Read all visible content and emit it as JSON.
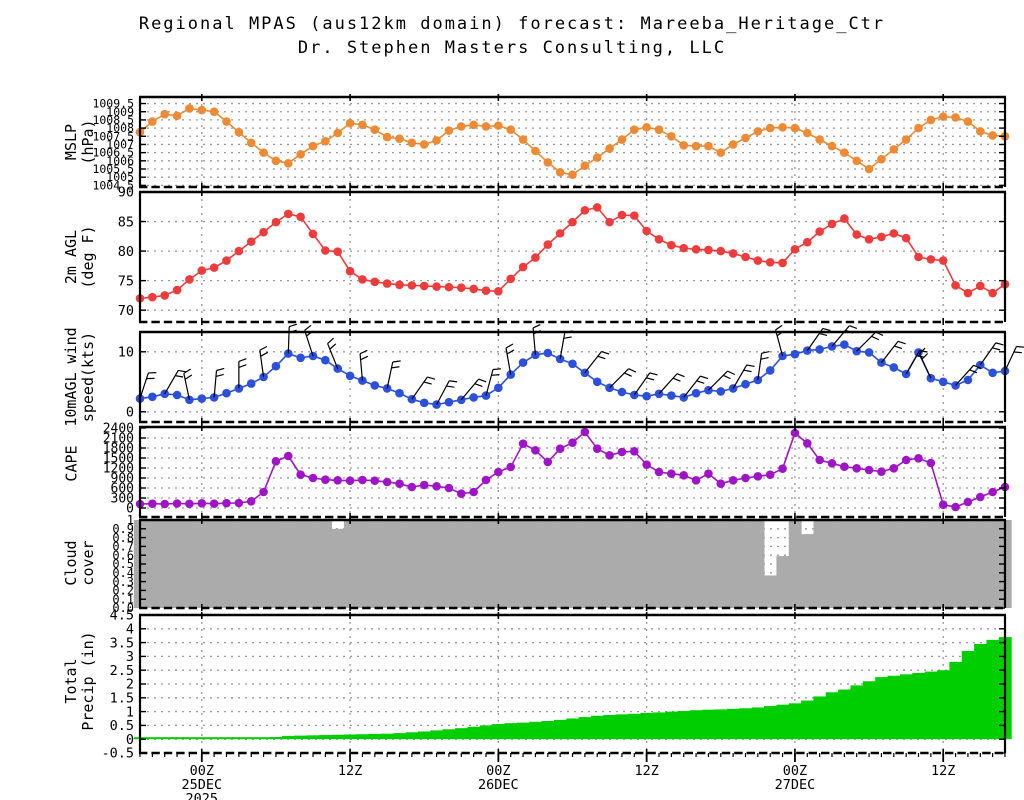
{
  "title": {
    "line1": "Regional MPAS (aus12km domain) forecast: Mareeba_Heritage_Ctr",
    "line2": "Dr. Stephen Masters Consulting, LLC"
  },
  "time_axis": {
    "major_hours": [
      5,
      17,
      29,
      41,
      53,
      65
    ],
    "labels": [
      {
        "h": 5,
        "lines": [
          "00Z",
          "25DEC",
          "2025"
        ]
      },
      {
        "h": 17,
        "lines": [
          "12Z"
        ]
      },
      {
        "h": 29,
        "lines": [
          "00Z",
          "26DEC"
        ]
      },
      {
        "h": 41,
        "lines": [
          "12Z"
        ]
      },
      {
        "h": 53,
        "lines": [
          "00Z",
          "27DEC"
        ]
      },
      {
        "h": 65,
        "lines": [
          "12Z"
        ]
      }
    ],
    "hours_total": 70
  },
  "colors": {
    "mslp": "#ED8A33",
    "temp": "#EE3B3B",
    "wind": "#2B50DC",
    "cape": "#A014C8",
    "cloud": "#ABABAB",
    "precip": "#00CE00",
    "grid": "#999999",
    "axis": "#000000"
  },
  "chart_data": [
    {
      "id": "mslp",
      "type": "line",
      "ylabel_line1": "MSLP",
      "ylabel_line2": "(hPa)",
      "ymin": 1004.4,
      "ymax": 1009.9,
      "tick_font": 11.5,
      "yticks": [
        {
          "v": 1009.5,
          "t": "1009.5"
        },
        {
          "v": 1009,
          "t": "1009"
        },
        {
          "v": 1008.5,
          "t": "1008.5"
        },
        {
          "v": 1008,
          "t": "1008"
        },
        {
          "v": 1007.5,
          "t": "1007.5"
        },
        {
          "v": 1007,
          "t": "1007"
        },
        {
          "v": 1006.5,
          "t": "1006.5"
        },
        {
          "v": 1006,
          "t": "1006"
        },
        {
          "v": 1005.5,
          "t": "1005.5"
        },
        {
          "v": 1005,
          "t": "1005"
        },
        {
          "v": 1004.5,
          "t": "1004.5"
        }
      ],
      "values": [
        1007.75,
        1008.4,
        1008.85,
        1008.75,
        1009.2,
        1009.1,
        1009.0,
        1008.4,
        1007.75,
        1007.1,
        1006.5,
        1006.0,
        1005.85,
        1006.4,
        1006.9,
        1007.2,
        1007.7,
        1008.3,
        1008.2,
        1007.9,
        1007.45,
        1007.35,
        1007.1,
        1007.0,
        1007.25,
        1007.85,
        1008.1,
        1008.2,
        1008.1,
        1008.15,
        1007.9,
        1007.3,
        1006.6,
        1005.9,
        1005.3,
        1005.15,
        1005.7,
        1006.2,
        1006.75,
        1007.3,
        1007.9,
        1008.05,
        1007.9,
        1007.5,
        1006.95,
        1006.9,
        1006.9,
        1006.5,
        1007.0,
        1007.4,
        1007.8,
        1008.0,
        1008.05,
        1008.0,
        1007.7,
        1007.3,
        1006.9,
        1006.5,
        1006.0,
        1005.5,
        1006.1,
        1006.7,
        1007.3,
        1008.0,
        1008.5,
        1008.7,
        1008.65,
        1008.4,
        1007.8,
        1007.55,
        1007.5
      ]
    },
    {
      "id": "temp",
      "type": "line",
      "ylabel_line1": "2m AGL",
      "ylabel_line2": "(deg F)",
      "ymin": 68,
      "ymax": 90,
      "tick_font": 13.5,
      "yticks": [
        {
          "v": 90,
          "t": "90"
        },
        {
          "v": 85,
          "t": "85"
        },
        {
          "v": 80,
          "t": "80"
        },
        {
          "v": 75,
          "t": "75"
        },
        {
          "v": 70,
          "t": "70"
        }
      ],
      "values": [
        72.0,
        72.2,
        72.5,
        73.4,
        75.2,
        76.7,
        77.2,
        78.4,
        80.0,
        81.6,
        83.2,
        84.9,
        86.3,
        85.8,
        82.9,
        80.1,
        79.9,
        76.6,
        75.2,
        74.8,
        74.5,
        74.3,
        74.2,
        74.1,
        74.0,
        73.9,
        73.8,
        73.6,
        73.3,
        73.2,
        75.3,
        77.3,
        78.9,
        81.1,
        83.0,
        84.9,
        86.9,
        87.4,
        84.9,
        86.1,
        86.0,
        83.4,
        82.0,
        81.0,
        80.5,
        80.3,
        80.2,
        80.0,
        79.6,
        79.0,
        78.4,
        78.1,
        78.0,
        80.3,
        81.5,
        83.3,
        84.6,
        85.5,
        82.8,
        82.0,
        82.4,
        83.0,
        82.2,
        79.0,
        78.6,
        78.4,
        74.2,
        72.9,
        74.1,
        72.9,
        74.4
      ]
    },
    {
      "id": "wind",
      "type": "line",
      "ylabel_line1": "10mAGL wind",
      "ylabel_line2": "speed(kts)",
      "ymin": -1.7,
      "ymax": 13.3,
      "tick_font": 13.5,
      "yticks": [
        {
          "v": 10,
          "t": "10"
        },
        {
          "v": 0,
          "t": "0"
        }
      ],
      "values": [
        2.2,
        2.5,
        3.0,
        2.8,
        2.0,
        2.2,
        2.4,
        3.1,
        3.9,
        4.7,
        5.8,
        7.6,
        9.7,
        9.0,
        9.3,
        8.6,
        7.2,
        6.0,
        5.2,
        4.4,
        3.9,
        3.1,
        2.1,
        1.5,
        1.2,
        1.6,
        2.0,
        2.4,
        2.7,
        4.0,
        6.2,
        8.2,
        9.5,
        9.8,
        8.8,
        8.0,
        6.5,
        5.0,
        4.0,
        3.3,
        2.8,
        2.6,
        3.0,
        2.7,
        2.4,
        3.1,
        3.6,
        3.4,
        3.9,
        4.6,
        5.3,
        6.9,
        9.3,
        9.6,
        10.2,
        10.4,
        10.9,
        11.2,
        10.1,
        9.9,
        8.2,
        7.4,
        6.3,
        9.9,
        5.6,
        5.0,
        4.4,
        5.3,
        7.8,
        6.5,
        6.8
      ],
      "barb_dirs_every_2h": [
        18,
        30,
        -12,
        5,
        0,
        -8,
        2,
        -18,
        -22,
        -5,
        12,
        35,
        28,
        40,
        15,
        -10,
        -5,
        10,
        38,
        45,
        35,
        42,
        38,
        45,
        30,
        8,
        -15,
        35,
        40,
        45,
        38,
        30,
        -25,
        42,
        35,
        25
      ]
    },
    {
      "id": "cape",
      "type": "line",
      "ylabel_line1": "CAPE",
      "ylabel_line2": "",
      "ymin": -270,
      "ymax": 2430,
      "tick_font": 13,
      "yticks": [
        {
          "v": 2400,
          "t": "2400"
        },
        {
          "v": 2100,
          "t": "2100"
        },
        {
          "v": 1800,
          "t": "1800"
        },
        {
          "v": 1500,
          "t": "1500"
        },
        {
          "v": 1200,
          "t": "1200"
        },
        {
          "v": 900,
          "t": "900"
        },
        {
          "v": 600,
          "t": "600"
        },
        {
          "v": 300,
          "t": "300"
        },
        {
          "v": 0,
          "t": "0"
        }
      ],
      "values": [
        120,
        130,
        120,
        135,
        125,
        140,
        130,
        145,
        150,
        200,
        480,
        1400,
        1560,
        1000,
        900,
        850,
        830,
        820,
        840,
        820,
        780,
        730,
        630,
        690,
        650,
        600,
        430,
        480,
        840,
        1080,
        1230,
        1930,
        1730,
        1380,
        1780,
        1960,
        2280,
        1780,
        1580,
        1680,
        1700,
        1300,
        1080,
        1030,
        980,
        830,
        1030,
        730,
        830,
        900,
        950,
        1000,
        1180,
        2250,
        1940,
        1440,
        1340,
        1240,
        1190,
        1140,
        1090,
        1190,
        1440,
        1490,
        1350,
        100,
        30,
        180,
        330,
        480,
        630
      ]
    },
    {
      "id": "cloud",
      "type": "area",
      "ylabel_line1": "Cloud",
      "ylabel_line2": "cover",
      "ymin": 0,
      "ymax": 1.0,
      "tick_font": 12,
      "yticks": [
        {
          "v": 1.0,
          "t": "1"
        },
        {
          "v": 0.9,
          "t": "0.9"
        },
        {
          "v": 0.8,
          "t": "0.8"
        },
        {
          "v": 0.7,
          "t": "0.7"
        },
        {
          "v": 0.6,
          "t": "0.6"
        },
        {
          "v": 0.5,
          "t": "0.5"
        },
        {
          "v": 0.4,
          "t": "0.4"
        },
        {
          "v": 0.3,
          "t": "0.3"
        },
        {
          "v": 0.2,
          "t": "0.2"
        },
        {
          "v": 0.1,
          "t": "0.1"
        },
        {
          "v": 0.0,
          "t": "0.0"
        }
      ],
      "values": [
        1,
        1,
        1,
        1,
        1,
        1,
        1,
        1,
        1,
        1,
        1,
        1,
        1,
        1,
        1,
        1,
        0.9,
        1,
        1,
        1,
        1,
        1,
        1,
        1,
        1,
        1,
        1,
        1,
        1,
        1,
        1,
        1,
        1,
        1,
        1,
        1,
        1,
        1,
        1,
        1,
        1,
        1,
        1,
        1,
        1,
        1,
        1,
        1,
        1,
        1,
        1,
        0.37,
        0.59,
        1,
        0.84,
        1,
        1,
        1,
        1,
        1,
        1,
        1,
        1,
        1,
        1,
        1,
        1,
        1,
        1,
        1,
        1
      ]
    },
    {
      "id": "precip",
      "type": "bar",
      "ylabel_line1": "Total",
      "ylabel_line2": "Precip (in)",
      "ymin": -0.5,
      "ymax": 4.5,
      "tick_font": 13.5,
      "yticks": [
        {
          "v": 4.5,
          "t": "4.5"
        },
        {
          "v": 4,
          "t": "4"
        },
        {
          "v": 3.5,
          "t": "3.5"
        },
        {
          "v": 3,
          "t": "3"
        },
        {
          "v": 2.5,
          "t": "2.5"
        },
        {
          "v": 2,
          "t": "2"
        },
        {
          "v": 1.5,
          "t": "1.5"
        },
        {
          "v": 1,
          "t": "1"
        },
        {
          "v": 0.5,
          "t": "0.5"
        },
        {
          "v": 0,
          "t": "0"
        },
        {
          "v": -0.5,
          "t": "-0.5"
        }
      ],
      "values": [
        0.02,
        0.02,
        0.02,
        0.02,
        0.02,
        0.02,
        0.02,
        0.02,
        0.02,
        0.03,
        0.05,
        0.08,
        0.12,
        0.13,
        0.14,
        0.15,
        0.16,
        0.17,
        0.18,
        0.19,
        0.2,
        0.22,
        0.25,
        0.28,
        0.32,
        0.36,
        0.4,
        0.45,
        0.5,
        0.55,
        0.58,
        0.6,
        0.63,
        0.66,
        0.7,
        0.75,
        0.8,
        0.85,
        0.88,
        0.9,
        0.92,
        0.95,
        0.97,
        1.0,
        1.02,
        1.05,
        1.07,
        1.08,
        1.1,
        1.12,
        1.15,
        1.2,
        1.25,
        1.3,
        1.4,
        1.55,
        1.7,
        1.8,
        1.95,
        2.1,
        2.25,
        2.3,
        2.35,
        2.4,
        2.45,
        2.5,
        2.8,
        3.2,
        3.45,
        3.6,
        3.7
      ]
    }
  ]
}
